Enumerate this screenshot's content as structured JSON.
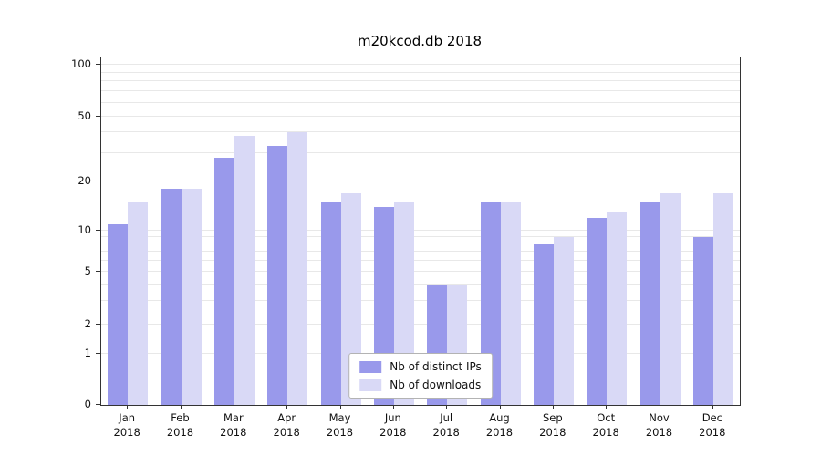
{
  "chart_data": {
    "type": "bar",
    "title": "m20kcod.db 2018",
    "year": "2018",
    "categories": [
      "Jan",
      "Feb",
      "Mar",
      "Apr",
      "May",
      "Jun",
      "Jul",
      "Aug",
      "Sep",
      "Oct",
      "Nov",
      "Dec"
    ],
    "series": [
      {
        "name": "Nb of distinct IPs",
        "color": "#9999eb",
        "values": [
          11,
          18,
          28,
          33,
          15,
          14,
          4,
          15,
          8,
          12,
          15,
          9
        ]
      },
      {
        "name": "Nb of downloads",
        "color": "#d9d9f6",
        "values": [
          15,
          18,
          38,
          40,
          17,
          15,
          4,
          15,
          9,
          13,
          17,
          17
        ]
      }
    ],
    "yticks": [
      0,
      1,
      2,
      5,
      10,
      20,
      50,
      100
    ],
    "ylim": [
      0,
      100
    ],
    "yscale": "log-like (symlog, 0 shown)",
    "grid": "horizontal minor+major log gridlines",
    "legend_position": "bottom-center inside plot",
    "xlabel": "",
    "ylabel": ""
  }
}
